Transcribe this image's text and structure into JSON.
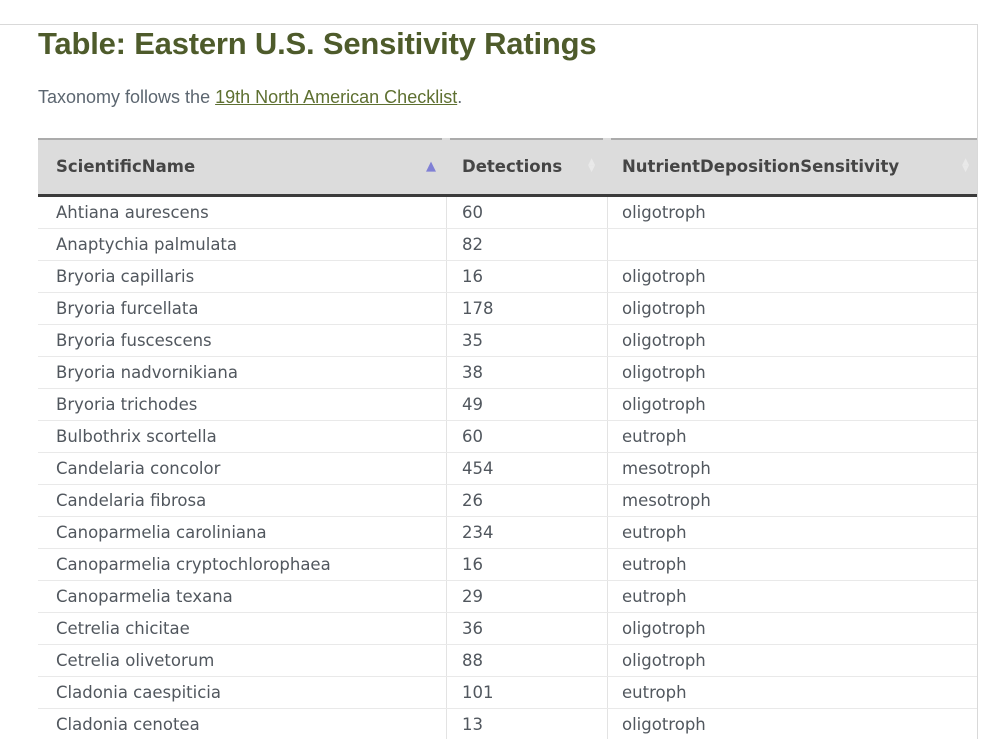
{
  "page": {
    "title": "Table: Eastern U.S. Sensitivity Ratings",
    "subtitle_prefix": "Taxonomy follows the ",
    "subtitle_link": "19th North American Checklist",
    "subtitle_suffix": "."
  },
  "colors": {
    "title": "#4e5b2b",
    "text": "#5c6670",
    "link": "#5e7031",
    "header_bg": "#dcdcdc",
    "header_text": "#454545",
    "header_top_border": "#ababab",
    "header_bottom_border": "#3b3b3b",
    "body_text": "#51575e",
    "row_border": "#e9e9e9",
    "column_border": "#e3e3e3",
    "sort_active": "#8080d5",
    "sort_inactive": "#e9e9e9",
    "hairline": "#d9d9d9"
  },
  "table": {
    "columns": [
      {
        "label": "ScientificName",
        "sort": "asc"
      },
      {
        "label": "Detections",
        "sort": "none"
      },
      {
        "label": "NutrientDepositionSensitivity",
        "sort": "none"
      }
    ],
    "rows": [
      {
        "scientific_name": "Ahtiana aurescens",
        "detections": "60",
        "sensitivity": "oligotroph"
      },
      {
        "scientific_name": "Anaptychia palmulata",
        "detections": "82",
        "sensitivity": ""
      },
      {
        "scientific_name": "Bryoria capillaris",
        "detections": "16",
        "sensitivity": "oligotroph"
      },
      {
        "scientific_name": "Bryoria furcellata",
        "detections": "178",
        "sensitivity": "oligotroph"
      },
      {
        "scientific_name": "Bryoria fuscescens",
        "detections": "35",
        "sensitivity": "oligotroph"
      },
      {
        "scientific_name": "Bryoria nadvornikiana",
        "detections": "38",
        "sensitivity": "oligotroph"
      },
      {
        "scientific_name": "Bryoria trichodes",
        "detections": "49",
        "sensitivity": "oligotroph"
      },
      {
        "scientific_name": "Bulbothrix scortella",
        "detections": "60",
        "sensitivity": "eutroph"
      },
      {
        "scientific_name": "Candelaria concolor",
        "detections": "454",
        "sensitivity": "mesotroph"
      },
      {
        "scientific_name": "Candelaria fibrosa",
        "detections": "26",
        "sensitivity": "mesotroph"
      },
      {
        "scientific_name": "Canoparmelia caroliniana",
        "detections": "234",
        "sensitivity": "eutroph"
      },
      {
        "scientific_name": "Canoparmelia cryptochlorophaea",
        "detections": "16",
        "sensitivity": "eutroph"
      },
      {
        "scientific_name": "Canoparmelia texana",
        "detections": "29",
        "sensitivity": "eutroph"
      },
      {
        "scientific_name": "Cetrelia chicitae",
        "detections": "36",
        "sensitivity": "oligotroph"
      },
      {
        "scientific_name": "Cetrelia olivetorum",
        "detections": "88",
        "sensitivity": "oligotroph"
      },
      {
        "scientific_name": "Cladonia caespiticia",
        "detections": "101",
        "sensitivity": "eutroph"
      },
      {
        "scientific_name": "Cladonia cenotea",
        "detections": "13",
        "sensitivity": "oligotroph"
      }
    ]
  }
}
